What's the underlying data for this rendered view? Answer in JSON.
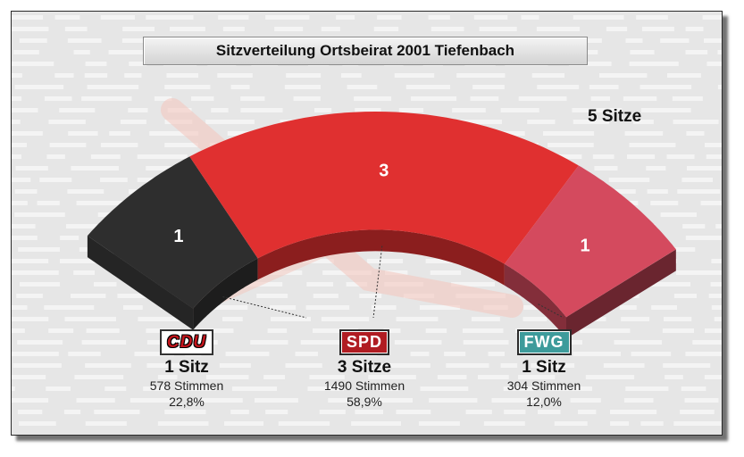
{
  "title": "Sitzverteilung Ortsbeirat 2001 Tiefenbach",
  "total_label": "5 Sitze",
  "colors": {
    "CDU": "#2e2e2e",
    "SPD": "#e03030",
    "FWG": "#d44a5e"
  },
  "parties": [
    {
      "logo": "CDU",
      "seats_label": "1 Sitz",
      "votes": "578 Stimmen",
      "pct": "22,8%"
    },
    {
      "logo": "SPD",
      "seats_label": "3 Sitze",
      "votes": "1490 Stimmen",
      "pct": "58,9%"
    },
    {
      "logo": "FWG",
      "seats_label": "1 Sitz",
      "votes": "304 Stimmen",
      "pct": "12,0%"
    }
  ],
  "chart_data": {
    "type": "pie",
    "title": "Sitzverteilung Ortsbeirat 2001 Tiefenbach",
    "total": 5,
    "categories": [
      "CDU",
      "SPD",
      "FWG"
    ],
    "values": [
      1,
      3,
      1
    ],
    "data_labels": [
      "1",
      "3",
      "1"
    ],
    "votes": [
      578,
      1490,
      304
    ],
    "percent": [
      22.8,
      58.9,
      12.0
    ]
  }
}
